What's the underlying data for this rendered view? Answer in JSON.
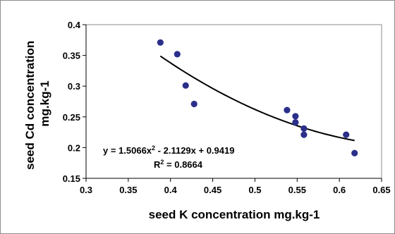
{
  "chart_data": {
    "type": "scatter",
    "title": "",
    "xlabel": "seed K concentration mg.kg-1",
    "ylabel_lines": [
      "seed Cd concentration",
      "mg.kg-1"
    ],
    "xlim": [
      0.3,
      0.65
    ],
    "ylim": [
      0.15,
      0.4
    ],
    "x_ticks": [
      "0.3",
      "0.35",
      "0.4",
      "0.45",
      "0.5",
      "0.55",
      "0.6",
      "0.65"
    ],
    "y_ticks": [
      "0.15",
      "0.2",
      "0.25",
      "0.3",
      "0.35",
      "0.4"
    ],
    "grid": false,
    "legend": "none",
    "marker_color": "#2b2f8a",
    "trendline_color": "#000000",
    "points": [
      {
        "x": 0.388,
        "y": 0.371
      },
      {
        "x": 0.408,
        "y": 0.352
      },
      {
        "x": 0.418,
        "y": 0.301
      },
      {
        "x": 0.428,
        "y": 0.271
      },
      {
        "x": 0.538,
        "y": 0.261
      },
      {
        "x": 0.548,
        "y": 0.251
      },
      {
        "x": 0.548,
        "y": 0.241
      },
      {
        "x": 0.558,
        "y": 0.231
      },
      {
        "x": 0.558,
        "y": 0.221
      },
      {
        "x": 0.608,
        "y": 0.221
      },
      {
        "x": 0.618,
        "y": 0.191
      }
    ],
    "trendline": {
      "type": "polynomial",
      "coefficients": [
        1.5066,
        -2.1129,
        0.9419
      ],
      "x_range": [
        0.388,
        0.618
      ],
      "equation_prefix": "y = 1.5066x",
      "equation_exponent": "2",
      "equation_suffix": " - 2.1129x + 0.9419",
      "r2_prefix": "R",
      "r2_exponent": "2",
      "r2_suffix": " = 0.8664"
    }
  }
}
